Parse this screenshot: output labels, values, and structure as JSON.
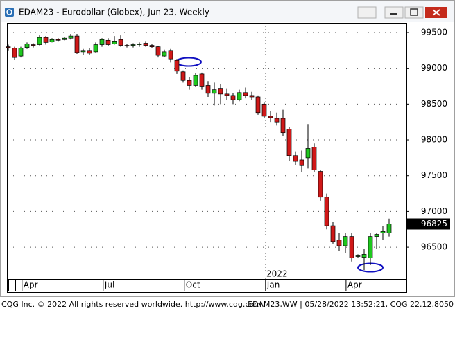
{
  "window": {
    "title": "EDAM23 - Eurodollar (Globex), Jun 23, Weekly"
  },
  "footer": {
    "left": "CQG Inc. © 2022 All rights reserved worldwide. http://www.cqg.com",
    "right": "EDAM23,WW | 05/28/2022 13:52:21, CQG 22.12.8050"
  },
  "chart_data": {
    "type": "candlestick",
    "categories": [
      null,
      null,
      null,
      null,
      null,
      null,
      null,
      null,
      null,
      null,
      null,
      null,
      null,
      null,
      null,
      null,
      null,
      null,
      null,
      null,
      null,
      null,
      null,
      null,
      null,
      null,
      null,
      null,
      null,
      null,
      null,
      null,
      null,
      null,
      null,
      null,
      null,
      null,
      null,
      null,
      null,
      null,
      null,
      null,
      null,
      null,
      null,
      null,
      null,
      null,
      null,
      null,
      null,
      null,
      null,
      null,
      null,
      null,
      null,
      null,
      null,
      null
    ],
    "open": [
      99300,
      99280,
      99170,
      99290,
      99330,
      99330,
      99430,
      99370,
      99400,
      99400,
      99420,
      99450,
      99230,
      99250,
      99230,
      99330,
      99390,
      99340,
      99400,
      99320,
      99320,
      99330,
      99350,
      99320,
      99300,
      99170,
      99250,
      99110,
      98950,
      98830,
      98760,
      98920,
      98760,
      98650,
      98720,
      98640,
      98620,
      98560,
      98660,
      98620,
      98600,
      98500,
      98330,
      98300,
      98300,
      98150,
      97780,
      97720,
      97750,
      97900,
      97560,
      97200,
      96800,
      96600,
      96520,
      96650,
      96380,
      96360,
      96350,
      96650,
      96700,
      96700
    ],
    "high": [
      99330,
      99300,
      99300,
      99360,
      99350,
      99460,
      99450,
      99420,
      99420,
      99440,
      99480,
      99480,
      99270,
      99280,
      99360,
      99420,
      99420,
      99450,
      99460,
      99340,
      99350,
      99360,
      99380,
      99340,
      99310,
      99260,
      99270,
      99130,
      98970,
      98880,
      98930,
      98940,
      98820,
      98800,
      98780,
      98720,
      98650,
      98700,
      98730,
      98670,
      98620,
      98520,
      98400,
      98380,
      98420,
      98180,
      97840,
      97850,
      98220,
      97950,
      97580,
      97250,
      96850,
      96700,
      96700,
      96700,
      96400,
      96480,
      96700,
      96700,
      96800,
      96900
    ],
    "low": [
      99250,
      99120,
      99150,
      99270,
      99290,
      99320,
      99330,
      99360,
      99380,
      99390,
      99400,
      99200,
      99180,
      99190,
      99220,
      99300,
      99310,
      99330,
      99300,
      99290,
      99290,
      99300,
      99300,
      99280,
      99150,
      99160,
      99080,
      98920,
      98800,
      98700,
      98740,
      98700,
      98600,
      98480,
      98500,
      98560,
      98500,
      98540,
      98580,
      98560,
      98350,
      98300,
      98250,
      98200,
      98050,
      97700,
      97650,
      97550,
      97600,
      97550,
      97150,
      96750,
      96550,
      96450,
      96420,
      96300,
      96350,
      96180,
      96250,
      96480,
      96600,
      96650
    ],
    "close": [
      99290,
      99150,
      99280,
      99340,
      99320,
      99430,
      99360,
      99400,
      99390,
      99420,
      99450,
      99220,
      99250,
      99210,
      99330,
      99400,
      99330,
      99380,
      99320,
      99310,
      99330,
      99340,
      99320,
      99300,
      99180,
      99230,
      99130,
      98960,
      98830,
      98760,
      98900,
      98750,
      98650,
      98700,
      98640,
      98620,
      98560,
      98660,
      98620,
      98600,
      98380,
      98330,
      98310,
      98250,
      98100,
      97780,
      97700,
      97640,
      97880,
      97580,
      97200,
      96800,
      96580,
      96520,
      96650,
      96350,
      96380,
      96400,
      96650,
      96680,
      96720,
      96825
    ],
    "up_color": "#1ec81e",
    "down_color": "#d01818",
    "ylim": [
      96056,
      99635
    ],
    "yticks": [
      96500,
      97000,
      97500,
      98000,
      98500,
      99000,
      99500
    ],
    "grid": true,
    "x_labels": [
      "Apr",
      "Jul",
      "Oct",
      "Jan",
      "Apr"
    ],
    "year_label": "2022"
  }
}
